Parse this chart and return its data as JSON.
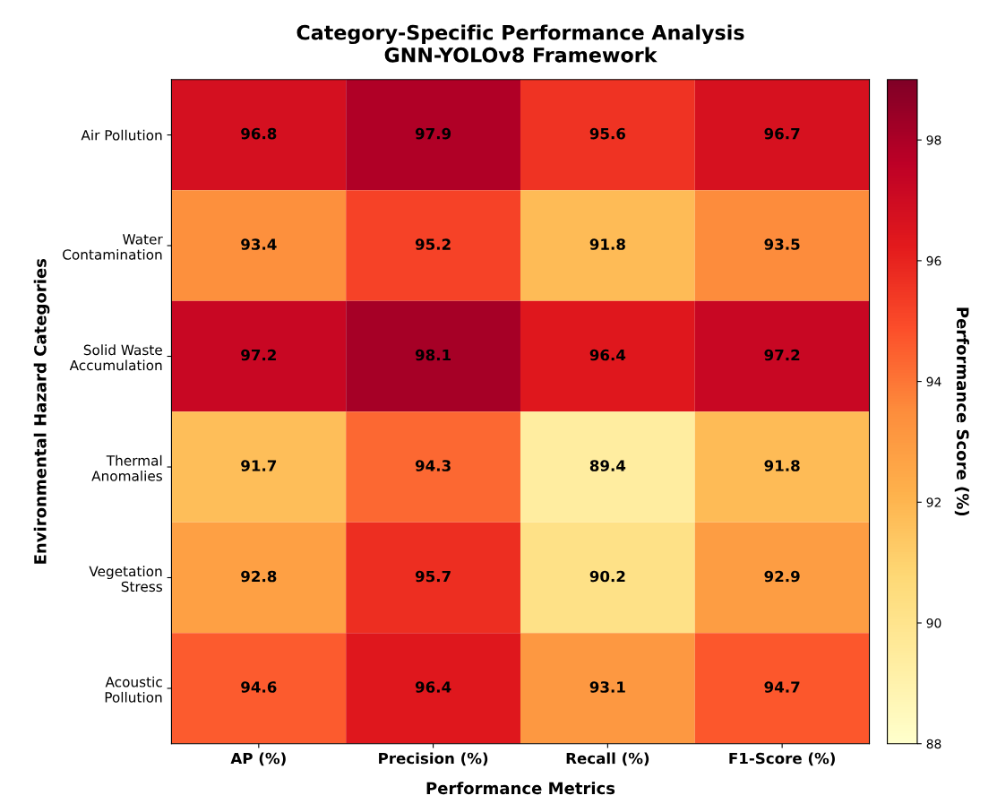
{
  "chart_data": {
    "type": "heatmap",
    "title": "Category-Specific Performance Analysis\nGNN-YOLOv8 Framework",
    "xlabel": "Performance Metrics",
    "ylabel": "Environmental Hazard Categories",
    "clabel": "Performance Score (%)",
    "categories": [
      "AP (%)",
      "Precision (%)",
      "Recall (%)",
      "F1-Score (%)"
    ],
    "y_categories": [
      "Air Pollution",
      "Water\nContamination",
      "Solid Waste\nAccumulation",
      "Thermal\nAnomalies",
      "Vegetation\nStress",
      "Acoustic\nPollution"
    ],
    "cells": [
      [
        96.8,
        97.9,
        95.6,
        96.7
      ],
      [
        93.4,
        95.2,
        91.8,
        93.5
      ],
      [
        97.2,
        98.1,
        96.4,
        97.2
      ],
      [
        91.7,
        94.3,
        89.4,
        91.8
      ],
      [
        92.8,
        95.7,
        90.2,
        92.9
      ],
      [
        94.6,
        96.4,
        93.1,
        94.7
      ]
    ],
    "clim": [
      88,
      99
    ],
    "cticks": [
      88,
      90,
      92,
      94,
      96,
      98
    ],
    "data_labels": true
  }
}
